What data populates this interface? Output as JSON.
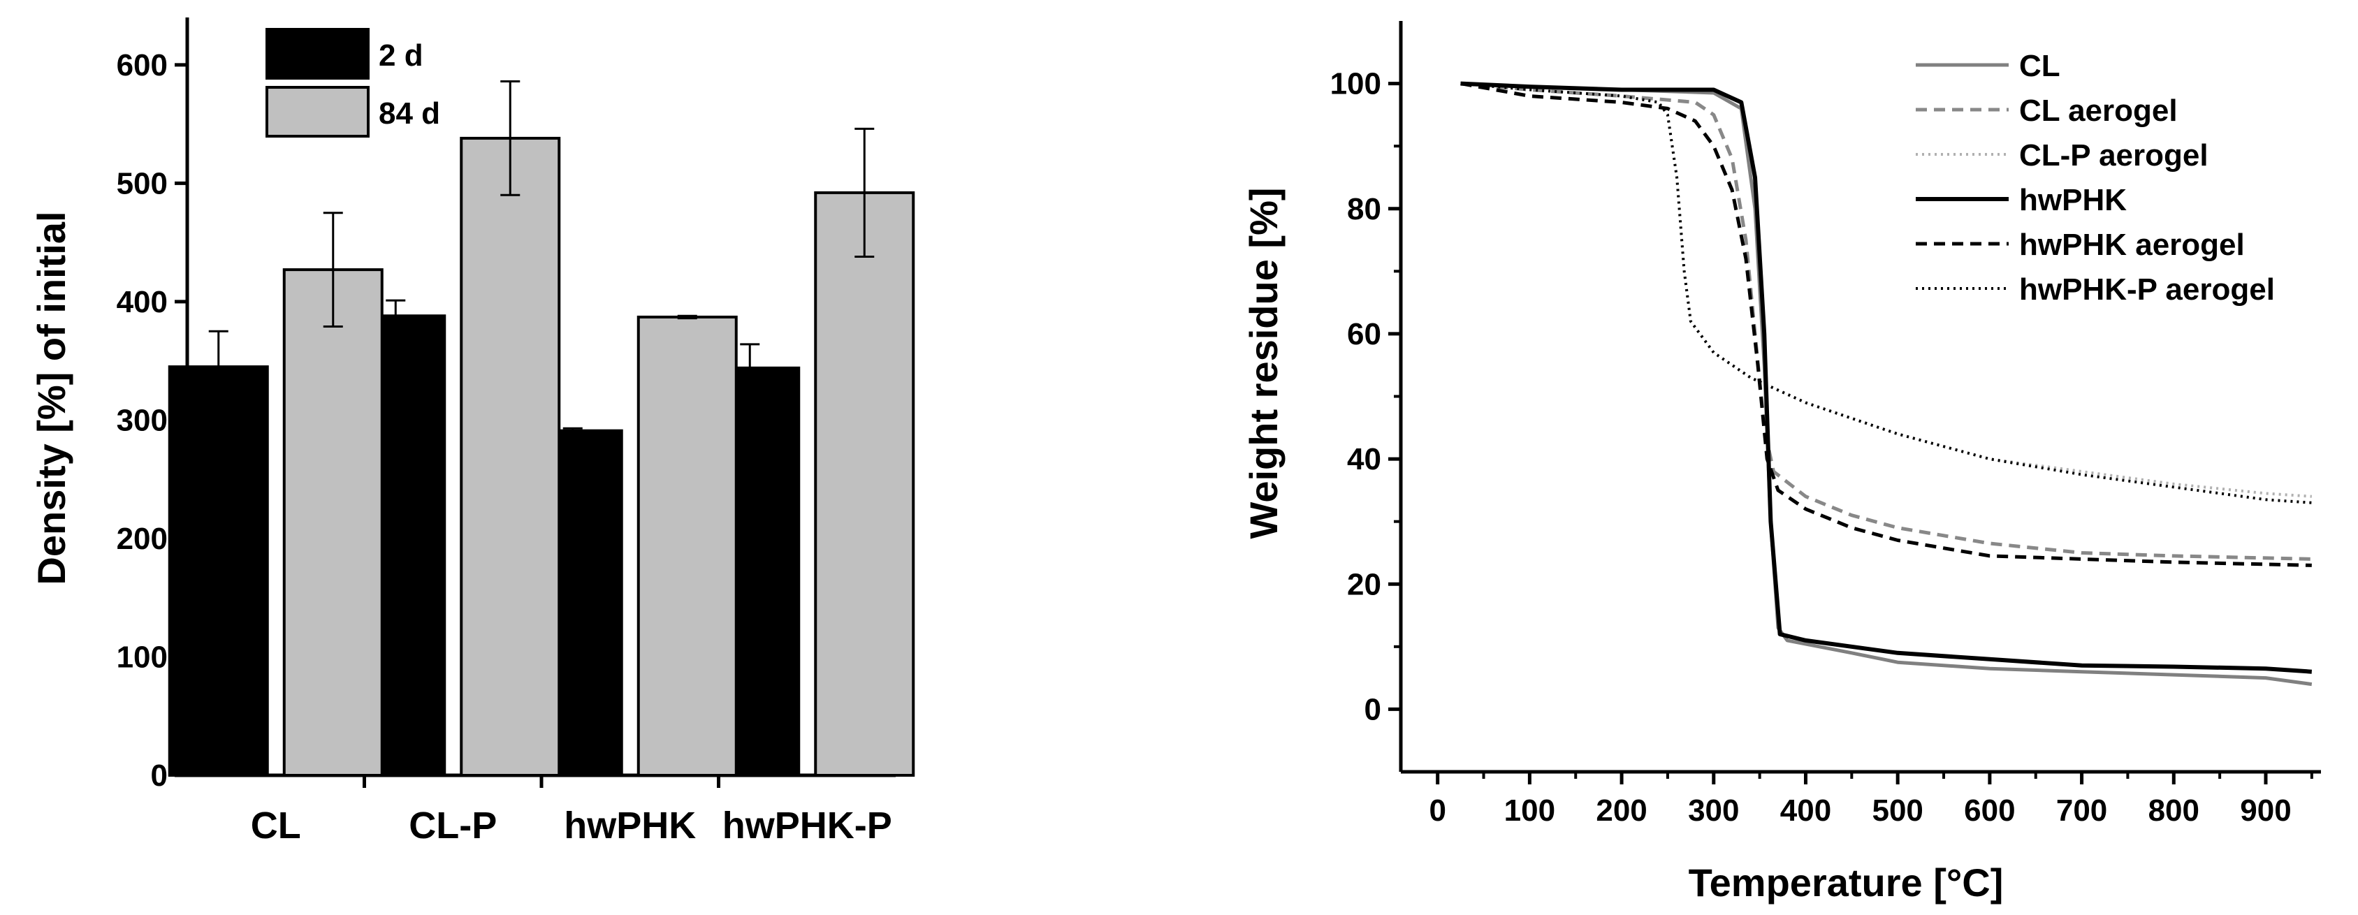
{
  "chart_data": [
    {
      "type": "bar",
      "categories": [
        "CL",
        "CL-P",
        "hwPHK",
        "hwPHK-P"
      ],
      "series": [
        {
          "name": "2 d",
          "color": "#000000",
          "values": [
            345,
            388,
            291,
            344
          ],
          "errors": [
            30,
            13,
            2,
            20
          ]
        },
        {
          "name": "84 d",
          "color": "#c0c0c0",
          "values": [
            427,
            538,
            387,
            492
          ],
          "errors": [
            48,
            48,
            1,
            54
          ]
        }
      ],
      "title": "",
      "xlabel": "",
      "ylabel": "Density [%] of initial",
      "ylim": [
        0,
        640
      ],
      "yticks": [
        0,
        100,
        200,
        300,
        400,
        500,
        600
      ],
      "legend": "top-left",
      "grid": false
    },
    {
      "type": "line",
      "title": "",
      "xlabel": "Temperature [°C]",
      "ylabel": "Weight residue [%]",
      "xlim": [
        -40,
        960
      ],
      "ylim": [
        -10,
        110
      ],
      "xticks": [
        0,
        100,
        200,
        300,
        400,
        500,
        600,
        700,
        800,
        900
      ],
      "yticks": [
        0,
        20,
        40,
        60,
        80,
        100
      ],
      "legend": "top-right",
      "grid": false,
      "series": [
        {
          "name": "CL",
          "color": "#808080",
          "dash": "solid",
          "width": 5,
          "points": [
            [
              25,
              100
            ],
            [
              100,
              99.5
            ],
            [
              200,
              99
            ],
            [
              300,
              98.5
            ],
            [
              330,
              96
            ],
            [
              345,
              80
            ],
            [
              355,
              55
            ],
            [
              362,
              30
            ],
            [
              370,
              13
            ],
            [
              380,
              11
            ],
            [
              450,
              9
            ],
            [
              500,
              7.5
            ],
            [
              600,
              6.5
            ],
            [
              700,
              6
            ],
            [
              800,
              5.5
            ],
            [
              900,
              5
            ],
            [
              950,
              4
            ]
          ]
        },
        {
          "name": "CL aerogel",
          "color": "#888888",
          "dash": "dash",
          "width": 5,
          "points": [
            [
              25,
              100
            ],
            [
              100,
              99
            ],
            [
              200,
              98
            ],
            [
              280,
              97
            ],
            [
              300,
              95
            ],
            [
              320,
              88
            ],
            [
              335,
              75
            ],
            [
              345,
              60
            ],
            [
              355,
              45
            ],
            [
              365,
              38
            ],
            [
              400,
              34
            ],
            [
              450,
              31
            ],
            [
              500,
              29
            ],
            [
              600,
              26.5
            ],
            [
              700,
              25
            ],
            [
              800,
              24.5
            ],
            [
              950,
              24
            ]
          ]
        },
        {
          "name": "CL-P aerogel",
          "color": "#b0b0b0",
          "dash": "dot",
          "width": 4,
          "points": [
            [
              25,
              100
            ],
            [
              100,
              99
            ],
            [
              200,
              98
            ],
            [
              240,
              97
            ],
            [
              250,
              95
            ],
            [
              260,
              85
            ],
            [
              268,
              70
            ],
            [
              275,
              62
            ],
            [
              300,
              57
            ],
            [
              340,
              53
            ],
            [
              400,
              49
            ],
            [
              500,
              44
            ],
            [
              600,
              40
            ],
            [
              700,
              38
            ],
            [
              800,
              36
            ],
            [
              900,
              34.5
            ],
            [
              950,
              34
            ]
          ]
        },
        {
          "name": "hwPHK",
          "color": "#000000",
          "dash": "solid",
          "width": 6,
          "points": [
            [
              25,
              100
            ],
            [
              100,
              99.5
            ],
            [
              200,
              99
            ],
            [
              300,
              99
            ],
            [
              330,
              97
            ],
            [
              345,
              85
            ],
            [
              355,
              60
            ],
            [
              362,
              30
            ],
            [
              372,
              12
            ],
            [
              400,
              11
            ],
            [
              500,
              9
            ],
            [
              600,
              8
            ],
            [
              700,
              7
            ],
            [
              800,
              6.8
            ],
            [
              900,
              6.5
            ],
            [
              950,
              6
            ]
          ]
        },
        {
          "name": "hwPHK aerogel",
          "color": "#000000",
          "dash": "dash",
          "width": 5,
          "points": [
            [
              25,
              100
            ],
            [
              100,
              98
            ],
            [
              200,
              97
            ],
            [
              250,
              96
            ],
            [
              280,
              94
            ],
            [
              300,
              90
            ],
            [
              320,
              83
            ],
            [
              335,
              72
            ],
            [
              348,
              55
            ],
            [
              358,
              40
            ],
            [
              370,
              35
            ],
            [
              400,
              32
            ],
            [
              450,
              29
            ],
            [
              500,
              27
            ],
            [
              600,
              24.5
            ],
            [
              700,
              24
            ],
            [
              800,
              23.5
            ],
            [
              950,
              23
            ]
          ]
        },
        {
          "name": "hwPHK-P aerogel",
          "color": "#000000",
          "dash": "dot",
          "width": 4,
          "points": [
            [
              25,
              100
            ],
            [
              100,
              99
            ],
            [
              200,
              98
            ],
            [
              240,
              97
            ],
            [
              250,
              95
            ],
            [
              260,
              85
            ],
            [
              268,
              70
            ],
            [
              275,
              62
            ],
            [
              300,
              57
            ],
            [
              340,
              53
            ],
            [
              400,
              49
            ],
            [
              500,
              44
            ],
            [
              600,
              40
            ],
            [
              700,
              37.5
            ],
            [
              800,
              35.5
            ],
            [
              900,
              33.5
            ],
            [
              950,
              33
            ]
          ]
        }
      ]
    }
  ]
}
